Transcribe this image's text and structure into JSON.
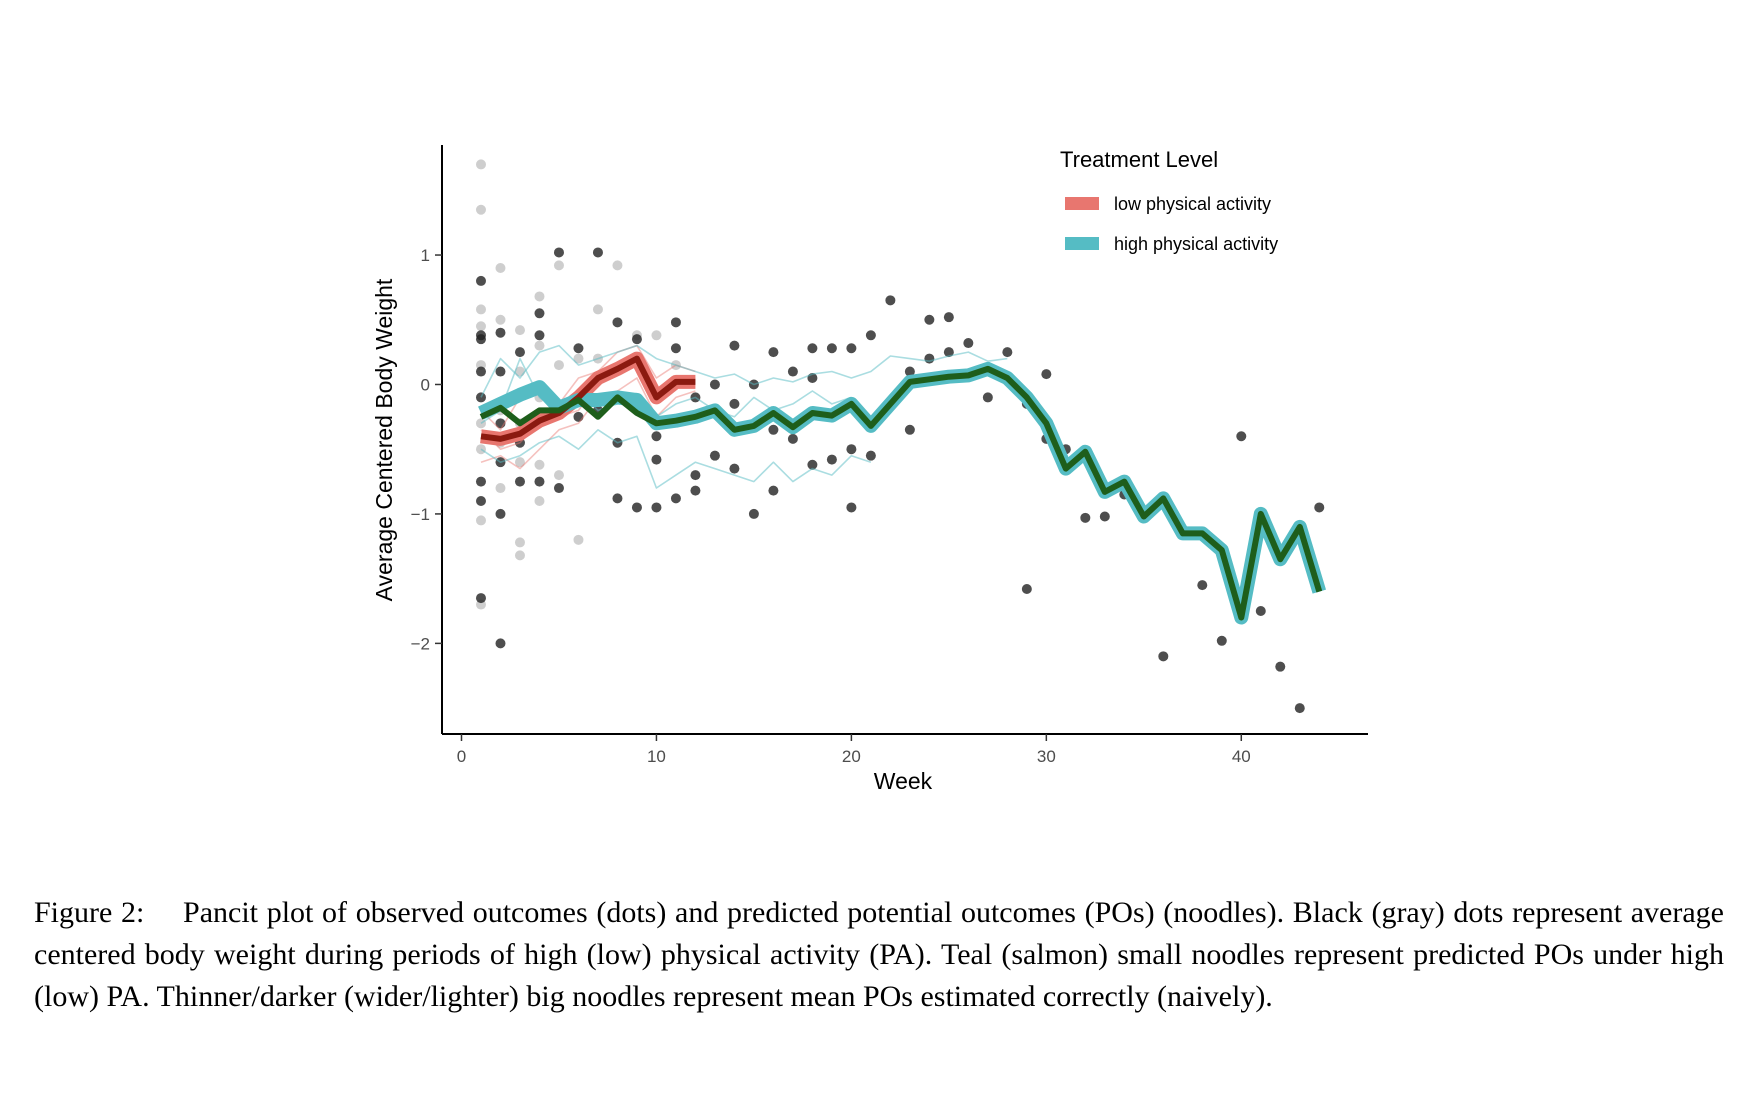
{
  "colors": {
    "low_pa": "#e8766f",
    "high_pa": "#55bcc4",
    "low_mean_naive": "#e8766f",
    "low_mean_correct": "#8b1a10",
    "high_mean_naive": "#55bcc4",
    "high_mean_correct": "#1e5e1b",
    "dots_high": "#222222",
    "dots_low": "#bdbdbd"
  },
  "chart_data": {
    "type": "line",
    "title": "",
    "xlabel": "Week",
    "ylabel": "Average Centered Body Weight",
    "xlim": [
      -1,
      46.5
    ],
    "ylim": [
      -2.7,
      1.85
    ],
    "x_ticks": [
      0,
      10,
      20,
      30,
      40
    ],
    "y_ticks": [
      -2,
      -1,
      0,
      1
    ],
    "x_tick_labels": [
      "0",
      "10",
      "20",
      "30",
      "40"
    ],
    "y_tick_labels": [
      "−2",
      "−1",
      "0",
      "1"
    ],
    "grid": false,
    "legend": {
      "title": "Treatment Level",
      "position": "top-right",
      "entries": [
        "low physical activity",
        "high physical activity"
      ]
    },
    "observed_high_pa": [
      [
        1,
        0.8
      ],
      [
        1,
        0.38
      ],
      [
        1,
        -0.75
      ],
      [
        1,
        -0.9
      ],
      [
        1,
        -0.1
      ],
      [
        1,
        0.1
      ],
      [
        1,
        -1.65
      ],
      [
        1,
        0.35
      ],
      [
        2,
        -2.0
      ],
      [
        2,
        0.1
      ],
      [
        2,
        -0.6
      ],
      [
        2,
        0.4
      ],
      [
        2,
        -1.0
      ],
      [
        2,
        -0.15
      ],
      [
        2,
        -0.3
      ],
      [
        3,
        -0.75
      ],
      [
        3,
        0.25
      ],
      [
        3,
        -0.45
      ],
      [
        4,
        0.55
      ],
      [
        4,
        0.38
      ],
      [
        4,
        -0.75
      ],
      [
        5,
        1.02
      ],
      [
        5,
        -0.8
      ],
      [
        6,
        -0.25
      ],
      [
        6,
        0.28
      ],
      [
        7,
        1.02
      ],
      [
        7,
        -0.2
      ],
      [
        8,
        0.48
      ],
      [
        8,
        -0.45
      ],
      [
        8,
        -0.88
      ],
      [
        9,
        0.35
      ],
      [
        9,
        -0.95
      ],
      [
        10,
        -0.4
      ],
      [
        10,
        -0.58
      ],
      [
        10,
        -0.95
      ],
      [
        11,
        0.48
      ],
      [
        11,
        0.28
      ],
      [
        11,
        -0.88
      ],
      [
        12,
        -0.1
      ],
      [
        12,
        -0.7
      ],
      [
        12,
        -0.82
      ],
      [
        13,
        0.0
      ],
      [
        13,
        -0.55
      ],
      [
        14,
        0.3
      ],
      [
        14,
        -0.15
      ],
      [
        14,
        -0.65
      ],
      [
        15,
        0.0
      ],
      [
        15,
        -1.0
      ],
      [
        16,
        0.25
      ],
      [
        16,
        -0.35
      ],
      [
        16,
        -0.82
      ],
      [
        17,
        0.1
      ],
      [
        17,
        -0.42
      ],
      [
        18,
        0.28
      ],
      [
        18,
        0.05
      ],
      [
        18,
        -0.62
      ],
      [
        19,
        0.28
      ],
      [
        19,
        -0.58
      ],
      [
        20,
        0.28
      ],
      [
        20,
        -0.5
      ],
      [
        20,
        -0.95
      ],
      [
        21,
        0.38
      ],
      [
        21,
        -0.55
      ],
      [
        22,
        0.65
      ],
      [
        23,
        0.1
      ],
      [
        23,
        -0.35
      ],
      [
        24,
        0.5
      ],
      [
        24,
        0.2
      ],
      [
        25,
        0.52
      ],
      [
        25,
        0.25
      ],
      [
        26,
        0.32
      ],
      [
        27,
        -0.1
      ],
      [
        28,
        0.25
      ],
      [
        29,
        -0.15
      ],
      [
        29,
        -1.58
      ],
      [
        30,
        0.08
      ],
      [
        30,
        -0.42
      ],
      [
        31,
        -0.5
      ],
      [
        32,
        -1.03
      ],
      [
        33,
        -1.02
      ],
      [
        34,
        -0.85
      ],
      [
        35,
        -0.98
      ],
      [
        36,
        -2.1
      ],
      [
        37,
        -1.12
      ],
      [
        38,
        -1.55
      ],
      [
        39,
        -1.98
      ],
      [
        40,
        -0.4
      ],
      [
        41,
        -1.75
      ],
      [
        42,
        -2.18
      ],
      [
        43,
        -2.5
      ],
      [
        44,
        -0.95
      ]
    ],
    "observed_low_pa": [
      [
        1,
        1.7
      ],
      [
        1,
        1.35
      ],
      [
        1,
        0.58
      ],
      [
        1,
        0.45
      ],
      [
        1,
        0.15
      ],
      [
        1,
        -0.3
      ],
      [
        1,
        -0.5
      ],
      [
        1,
        -1.05
      ],
      [
        1,
        -1.7
      ],
      [
        2,
        0.9
      ],
      [
        2,
        0.5
      ],
      [
        2,
        -0.2
      ],
      [
        2,
        -0.45
      ],
      [
        2,
        -0.8
      ],
      [
        3,
        0.42
      ],
      [
        3,
        0.1
      ],
      [
        3,
        -0.6
      ],
      [
        3,
        -1.22
      ],
      [
        3,
        -1.32
      ],
      [
        3,
        -0.3
      ],
      [
        4,
        0.68
      ],
      [
        4,
        0.3
      ],
      [
        4,
        -0.1
      ],
      [
        4,
        -0.62
      ],
      [
        4,
        -0.9
      ],
      [
        5,
        0.92
      ],
      [
        5,
        0.15
      ],
      [
        5,
        -0.7
      ],
      [
        6,
        0.2
      ],
      [
        6,
        -1.2
      ],
      [
        7,
        0.58
      ],
      [
        7,
        0.2
      ],
      [
        8,
        0.92
      ],
      [
        9,
        0.38
      ],
      [
        10,
        0.38
      ],
      [
        11,
        0.15
      ]
    ],
    "series": [
      {
        "name": "low physical activity",
        "role": "mean POs (naive)",
        "x": [
          1,
          2,
          3,
          4,
          5,
          6,
          7,
          8,
          9,
          10,
          11,
          12
        ],
        "y": [
          -0.4,
          -0.42,
          -0.38,
          -0.28,
          -0.22,
          -0.1,
          0.05,
          0.12,
          0.2,
          -0.1,
          0.02,
          0.02
        ]
      },
      {
        "name": "low physical activity",
        "role": "mean POs (correct)",
        "x": [
          1,
          2,
          3,
          4,
          5,
          6,
          7,
          8,
          9,
          10,
          11,
          12
        ],
        "y": [
          -0.4,
          -0.42,
          -0.38,
          -0.28,
          -0.22,
          -0.1,
          0.05,
          0.12,
          0.2,
          -0.1,
          0.02,
          0.02
        ]
      },
      {
        "name": "high physical activity",
        "role": "mean POs (naive)",
        "x": [
          1,
          2,
          3,
          4,
          5,
          6,
          7,
          8,
          9,
          10,
          11,
          12,
          13,
          14,
          15,
          16,
          17,
          18,
          19,
          20,
          21,
          22,
          23,
          24,
          25,
          26,
          27,
          28,
          29,
          30,
          31,
          32,
          33,
          34,
          35,
          36,
          37,
          38,
          39,
          40,
          41,
          42,
          43,
          44
        ],
        "y": [
          -0.22,
          -0.15,
          -0.08,
          -0.02,
          -0.18,
          -0.12,
          -0.12,
          -0.1,
          -0.12,
          -0.3,
          -0.28,
          -0.25,
          -0.2,
          -0.35,
          -0.32,
          -0.22,
          -0.33,
          -0.22,
          -0.24,
          -0.15,
          -0.32,
          -0.15,
          0.02,
          0.04,
          0.06,
          0.07,
          0.12,
          0.05,
          -0.1,
          -0.3,
          -0.65,
          -0.52,
          -0.83,
          -0.75,
          -1.02,
          -0.88,
          -1.15,
          -1.15,
          -1.28,
          -1.8,
          -1.0,
          -1.35,
          -1.1,
          -1.6
        ]
      },
      {
        "name": "high physical activity",
        "role": "mean POs (correct)",
        "x": [
          1,
          2,
          3,
          4,
          5,
          6,
          7,
          8,
          9,
          10,
          11,
          12,
          13,
          14,
          15,
          16,
          17,
          18,
          19,
          20,
          21,
          22,
          23,
          24,
          25,
          26,
          27,
          28,
          29,
          30,
          31,
          32,
          33,
          34,
          35,
          36,
          37,
          38,
          39,
          40,
          41,
          42,
          43,
          44
        ],
        "y": [
          -0.25,
          -0.18,
          -0.3,
          -0.2,
          -0.2,
          -0.12,
          -0.25,
          -0.1,
          -0.22,
          -0.3,
          -0.28,
          -0.25,
          -0.2,
          -0.35,
          -0.32,
          -0.22,
          -0.33,
          -0.22,
          -0.24,
          -0.15,
          -0.32,
          -0.15,
          0.02,
          0.04,
          0.06,
          0.07,
          0.12,
          0.05,
          -0.1,
          -0.3,
          -0.65,
          -0.52,
          -0.83,
          -0.75,
          -1.02,
          -0.88,
          -1.15,
          -1.15,
          -1.28,
          -1.8,
          -1.0,
          -1.35,
          -1.1,
          -1.6
        ]
      }
    ],
    "small_noodles_high_pa": [
      {
        "x": [
          1,
          2,
          3,
          4,
          5,
          6,
          7,
          8,
          9,
          10,
          11,
          12,
          13,
          14,
          15,
          16,
          17,
          18,
          19,
          20,
          21,
          22,
          23,
          24,
          25,
          26,
          27,
          28
        ],
        "y": [
          -0.1,
          0.2,
          0.05,
          0.25,
          0.3,
          0.15,
          0.2,
          0.25,
          0.3,
          0.2,
          0.15,
          0.1,
          0.05,
          0.08,
          0.0,
          0.05,
          0.02,
          0.08,
          0.1,
          0.05,
          0.1,
          0.22,
          0.2,
          0.18,
          0.22,
          0.25,
          0.18,
          0.2
        ]
      },
      {
        "x": [
          1,
          2,
          3,
          4,
          5,
          6,
          7,
          8,
          9,
          10,
          11,
          12,
          13,
          14,
          15,
          16,
          17,
          18,
          19,
          20,
          21
        ],
        "y": [
          -0.5,
          -0.6,
          -0.55,
          -0.45,
          -0.4,
          -0.5,
          -0.35,
          -0.45,
          -0.4,
          -0.8,
          -0.7,
          -0.6,
          -0.65,
          -0.7,
          -0.75,
          -0.6,
          -0.75,
          -0.65,
          -0.7,
          -0.55,
          -0.6
        ]
      },
      {
        "x": [
          1,
          2,
          3,
          4,
          5,
          6,
          7,
          8,
          9,
          10,
          11,
          12,
          13,
          14,
          15,
          16,
          17,
          18,
          19,
          20
        ],
        "y": [
          -0.3,
          -0.2,
          0.2,
          -0.1,
          -0.2,
          -0.05,
          -0.2,
          -0.15,
          -0.1,
          -0.25,
          -0.15,
          -0.1,
          -0.2,
          -0.25,
          -0.1,
          -0.2,
          -0.15,
          -0.05,
          -0.15,
          -0.1
        ]
      }
    ],
    "small_noodles_low_pa": [
      {
        "x": [
          1,
          2,
          3,
          4,
          5,
          6,
          7,
          8,
          9,
          10,
          11,
          12
        ],
        "y": [
          -0.2,
          -0.35,
          -0.1,
          -0.05,
          -0.15,
          0.05,
          0.1,
          0.25,
          0.3,
          0.05,
          0.15,
          0.1
        ]
      },
      {
        "x": [
          1,
          2,
          3,
          4,
          5,
          6,
          7,
          8,
          9,
          10,
          11,
          12
        ],
        "y": [
          -0.6,
          -0.55,
          -0.65,
          -0.5,
          -0.35,
          -0.3,
          -0.1,
          -0.05,
          0.05,
          -0.25,
          -0.1,
          -0.05
        ]
      },
      {
        "x": [
          1,
          2,
          3,
          4,
          5,
          6,
          7,
          8,
          9,
          10,
          11,
          12
        ],
        "y": [
          -0.35,
          -0.5,
          -0.45,
          -0.3,
          -0.25,
          -0.2,
          0.0,
          0.1,
          0.2,
          -0.05,
          0.0,
          0.05
        ]
      }
    ]
  },
  "caption": {
    "text": "Figure 2:  Pancit plot of observed outcomes (dots) and predicted potential outcomes (POs) (noodles). Black (gray) dots represent average centered body weight during periods of high (low) physical activity (PA). Teal (salmon) small noodles represent predicted POs under high (low) PA. Thinner/darker (wider/lighter) big noodles represent mean POs estimated correctly (naively)."
  }
}
